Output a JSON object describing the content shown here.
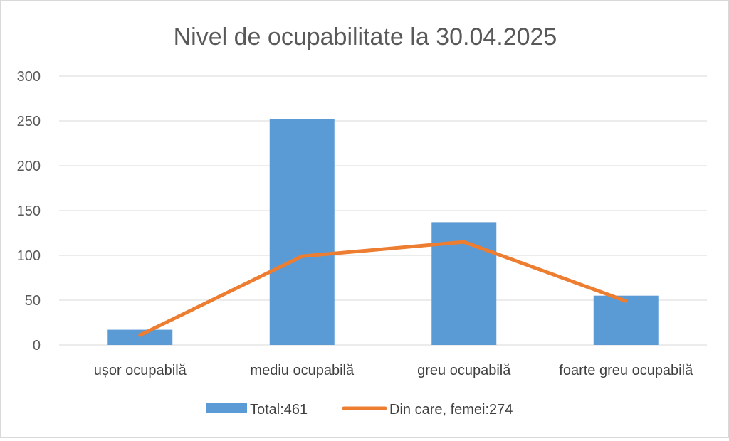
{
  "chart_data": {
    "type": "bar",
    "title": "Nivel de ocupabilitate la 30.04.2025",
    "categories": [
      "ușor ocupabilă",
      "mediu ocupabilă",
      "greu ocupabilă",
      "foarte greu ocupabilă"
    ],
    "series": [
      {
        "name": "Total:461",
        "type": "bar",
        "color": "#5b9bd5",
        "values": [
          17,
          252,
          137,
          55
        ]
      },
      {
        "name": "Din care, femei:274",
        "type": "line",
        "color": "#ed7d31",
        "values": [
          11,
          99,
          115,
          49
        ]
      }
    ],
    "ylim": [
      0,
      300
    ],
    "yticks": [
      0,
      50,
      100,
      150,
      200,
      250,
      300
    ],
    "grid": true,
    "legend": "bottom"
  }
}
